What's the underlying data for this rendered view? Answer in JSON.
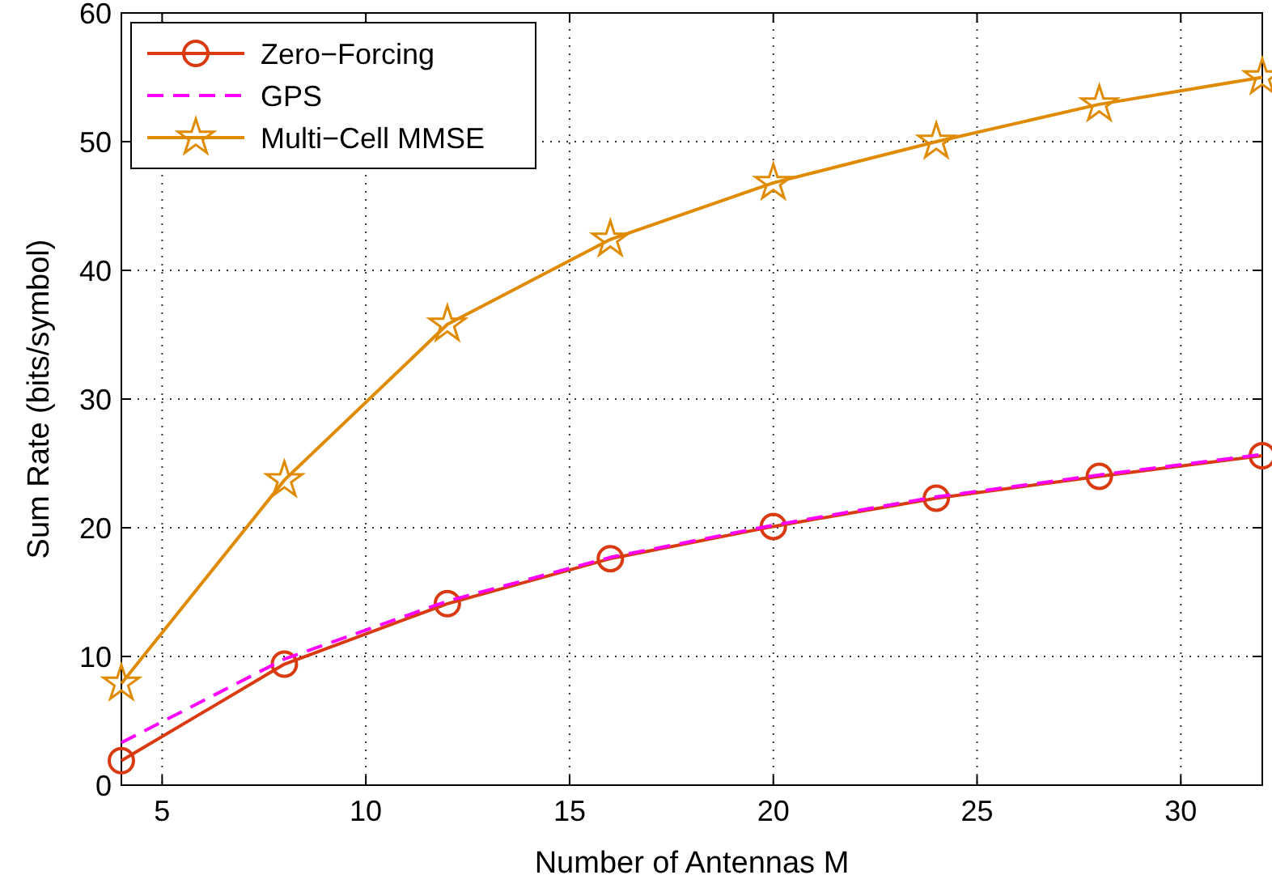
{
  "chart_data": {
    "type": "line",
    "xlabel": "Number of Antennas M",
    "ylabel": "Sum Rate (bits/symbol)",
    "x": [
      4,
      8,
      12,
      16,
      20,
      24,
      28,
      32
    ],
    "series": [
      {
        "name": "Zero−Forcing",
        "color": "#d93a10",
        "marker": "circle",
        "line_style": "solid",
        "values": [
          1.9,
          9.4,
          14.1,
          17.6,
          20.1,
          22.3,
          24.0,
          25.6
        ]
      },
      {
        "name": "GPS",
        "color": "#ff00ff",
        "marker": "none",
        "line_style": "dashed",
        "values": [
          3.3,
          9.8,
          14.3,
          17.7,
          20.2,
          22.4,
          24.1,
          25.7
        ]
      },
      {
        "name": "Multi−Cell MMSE",
        "color": "#e08a00",
        "marker": "star",
        "line_style": "solid",
        "values": [
          7.9,
          23.7,
          35.8,
          42.4,
          46.8,
          50.0,
          52.9,
          55.0
        ]
      }
    ],
    "xlim": [
      4,
      32
    ],
    "xticks": [
      5,
      10,
      15,
      20,
      25,
      30
    ],
    "ylim": [
      0,
      60
    ],
    "yticks": [
      0,
      10,
      20,
      30,
      40,
      50,
      60
    ],
    "grid": true,
    "legend": "top left"
  }
}
